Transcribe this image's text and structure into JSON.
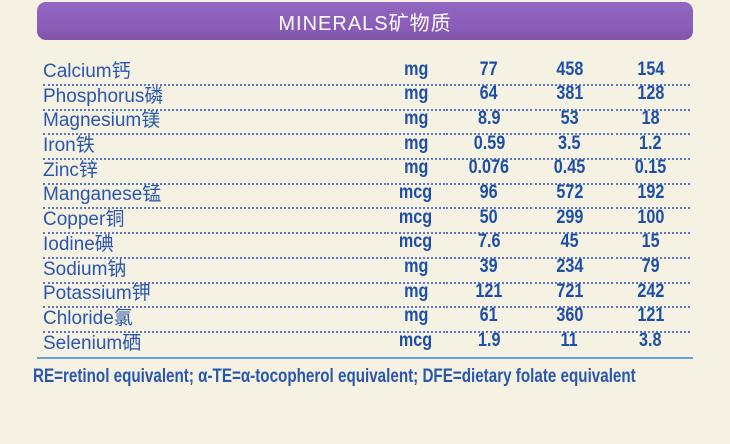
{
  "header": {
    "title": "MINERALS矿物质",
    "bg_color": "#8a5cb6",
    "text_color": "#ffffff"
  },
  "table": {
    "rows": [
      {
        "label": "Calcium钙",
        "unit": "mg",
        "values": [
          "77",
          "458",
          "154"
        ]
      },
      {
        "label": "Phosphorus磷",
        "unit": "mg",
        "values": [
          "64",
          "381",
          "128"
        ]
      },
      {
        "label": "Magnesium镁",
        "unit": "mg",
        "values": [
          "8.9",
          "53",
          "18"
        ]
      },
      {
        "label": "Iron铁",
        "unit": "mg",
        "values": [
          "0.59",
          "3.5",
          "1.2"
        ]
      },
      {
        "label": "Zinc锌",
        "unit": "mg",
        "values": [
          "0.076",
          "0.45",
          "0.15"
        ]
      },
      {
        "label": "Manganese锰",
        "unit": "mcg",
        "values": [
          "96",
          "572",
          "192"
        ]
      },
      {
        "label": "Copper铜",
        "unit": "mcg",
        "values": [
          "50",
          "299",
          "100"
        ]
      },
      {
        "label": "Iodine碘",
        "unit": "mcg",
        "values": [
          "7.6",
          "45",
          "15"
        ]
      },
      {
        "label": "Sodium钠",
        "unit": "mg",
        "values": [
          "39",
          "234",
          "79"
        ]
      },
      {
        "label": "Potassium钾",
        "unit": "mg",
        "values": [
          "121",
          "721",
          "242"
        ]
      },
      {
        "label": "Chloride氯",
        "unit": "mg",
        "values": [
          "61",
          "360",
          "121"
        ]
      },
      {
        "label": "Selenium硒",
        "unit": "mcg",
        "values": [
          "1.9",
          "11",
          "3.8"
        ]
      }
    ]
  },
  "footnote": "RE=retinol equivalent; α-TE=α-tocopherol equivalent; DFE=dietary folate equivalent",
  "colors": {
    "background": "#f5f1e3",
    "label_blue": "#2a57ae",
    "value_blue": "#1d4fa6",
    "dotted_line": "#5b76c2",
    "rule_line": "#68a0d8"
  }
}
